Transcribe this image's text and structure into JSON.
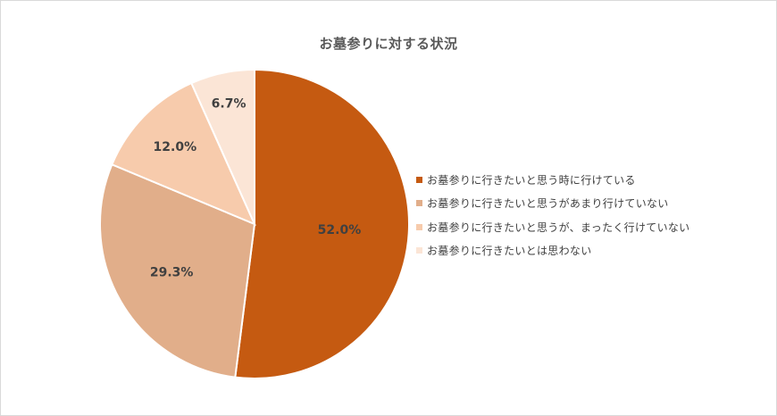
{
  "chart_data": {
    "type": "pie",
    "title": "お墓参りに対する状況",
    "categories": [
      "お墓参りに行きたいと思う時に行けている",
      "お墓参りに行きたいと思うがあまり行けていない",
      "お墓参りに行きたいと思うが、まったく行けていない",
      "お墓参りに行きたいとは思わない"
    ],
    "values": [
      52.0,
      29.3,
      12.0,
      6.7
    ],
    "labels": [
      "52.0%",
      "29.3%",
      "12.0%",
      "6.7%"
    ],
    "colors": [
      "#C55A11",
      "#E1AE8A",
      "#F7CBAC",
      "#FBE5D6"
    ],
    "start_angle": "12 o'clock, clockwise",
    "legend_position": "right"
  },
  "title": "お墓参りに対する状況",
  "legend": [
    {
      "label": "お墓参りに行きたいと思う時に行けている",
      "color": "#C55A11"
    },
    {
      "label": "お墓参りに行きたいと思うがあまり行けていない",
      "color": "#E1AE8A"
    },
    {
      "label": "お墓参りに行きたいと思うが、まったく行けていない",
      "color": "#F7CBAC"
    },
    {
      "label": "お墓参りに行きたいとは思わない",
      "color": "#FBE5D6"
    }
  ]
}
